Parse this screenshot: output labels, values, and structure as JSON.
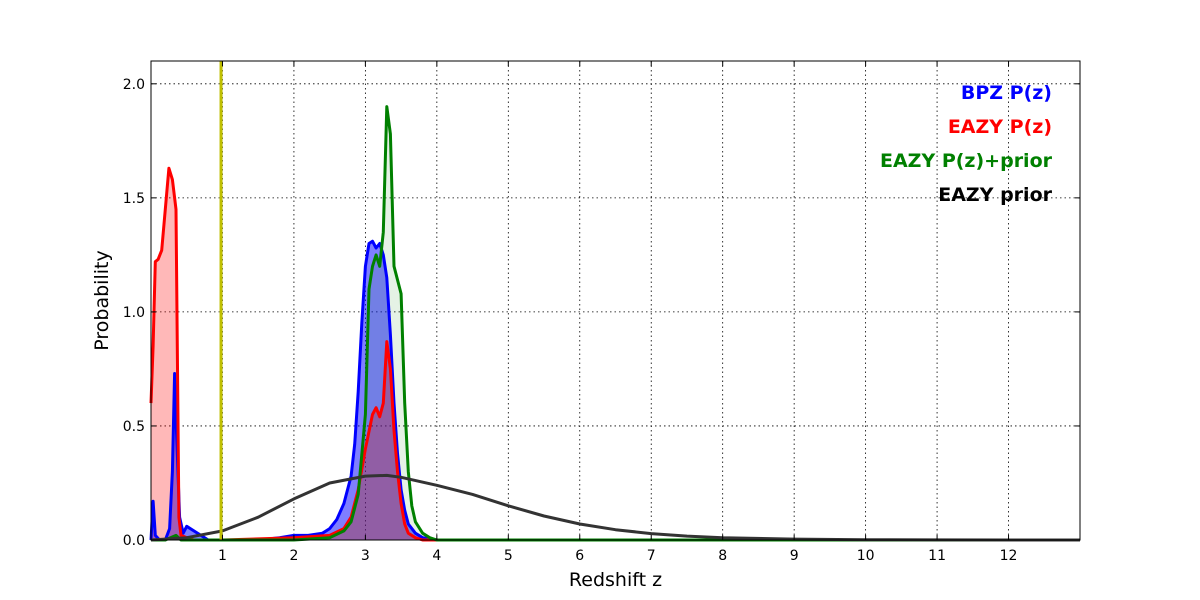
{
  "chart_data": {
    "type": "line",
    "xlabel": "Redshift z",
    "ylabel": "Probability",
    "xlim": [
      0,
      13
    ],
    "ylim": [
      0,
      2.1
    ],
    "xticks": [
      1,
      2,
      3,
      4,
      5,
      6,
      7,
      8,
      9,
      10,
      11,
      12
    ],
    "yticks": [
      0.0,
      0.5,
      1.0,
      1.5,
      2.0
    ],
    "ytick_labels": [
      "0.0",
      "0.5",
      "1.0",
      "1.5",
      "2.0"
    ],
    "grid": true,
    "legend_position": "top-right",
    "vline": {
      "x": 0.98,
      "color": "#bfbf00"
    },
    "series": [
      {
        "name": "BPZ P(z)",
        "color": "#0000ff",
        "fill": "#0000ff",
        "fill_opacity": 0.5,
        "points": [
          [
            0.0,
            0.0
          ],
          [
            0.03,
            0.17
          ],
          [
            0.06,
            0.02
          ],
          [
            0.12,
            0.0
          ],
          [
            0.2,
            0.0
          ],
          [
            0.26,
            0.05
          ],
          [
            0.3,
            0.3
          ],
          [
            0.33,
            0.73
          ],
          [
            0.36,
            0.45
          ],
          [
            0.4,
            0.1
          ],
          [
            0.45,
            0.03
          ],
          [
            0.5,
            0.06
          ],
          [
            0.6,
            0.04
          ],
          [
            0.7,
            0.02
          ],
          [
            0.8,
            0.0
          ],
          [
            1.0,
            0.0
          ],
          [
            1.5,
            0.0
          ],
          [
            1.8,
            0.01
          ],
          [
            2.0,
            0.02
          ],
          [
            2.2,
            0.02
          ],
          [
            2.4,
            0.03
          ],
          [
            2.5,
            0.05
          ],
          [
            2.6,
            0.09
          ],
          [
            2.7,
            0.16
          ],
          [
            2.8,
            0.28
          ],
          [
            2.85,
            0.42
          ],
          [
            2.9,
            0.65
          ],
          [
            2.95,
            0.95
          ],
          [
            3.0,
            1.2
          ],
          [
            3.05,
            1.3
          ],
          [
            3.1,
            1.31
          ],
          [
            3.15,
            1.28
          ],
          [
            3.2,
            1.3
          ],
          [
            3.25,
            1.25
          ],
          [
            3.3,
            1.15
          ],
          [
            3.35,
            0.9
          ],
          [
            3.4,
            0.6
          ],
          [
            3.45,
            0.38
          ],
          [
            3.5,
            0.22
          ],
          [
            3.55,
            0.13
          ],
          [
            3.6,
            0.07
          ],
          [
            3.7,
            0.03
          ],
          [
            3.8,
            0.01
          ],
          [
            4.0,
            0.0
          ],
          [
            13.0,
            0.0
          ]
        ]
      },
      {
        "name": "EAZY P(z)",
        "color": "#ff0000",
        "fill": "#ff0000",
        "fill_opacity": 0.28,
        "points": [
          [
            0.0,
            0.6
          ],
          [
            0.03,
            0.85
          ],
          [
            0.06,
            1.22
          ],
          [
            0.1,
            1.23
          ],
          [
            0.15,
            1.27
          ],
          [
            0.2,
            1.45
          ],
          [
            0.25,
            1.63
          ],
          [
            0.3,
            1.58
          ],
          [
            0.35,
            1.45
          ],
          [
            0.37,
            0.8
          ],
          [
            0.39,
            0.1
          ],
          [
            0.42,
            0.02
          ],
          [
            0.5,
            0.01
          ],
          [
            0.6,
            0.0
          ],
          [
            1.0,
            0.0
          ],
          [
            2.0,
            0.01
          ],
          [
            2.5,
            0.02
          ],
          [
            2.7,
            0.05
          ],
          [
            2.8,
            0.1
          ],
          [
            2.9,
            0.22
          ],
          [
            3.0,
            0.4
          ],
          [
            3.1,
            0.55
          ],
          [
            3.15,
            0.58
          ],
          [
            3.2,
            0.54
          ],
          [
            3.25,
            0.6
          ],
          [
            3.3,
            0.87
          ],
          [
            3.35,
            0.75
          ],
          [
            3.4,
            0.48
          ],
          [
            3.45,
            0.3
          ],
          [
            3.5,
            0.16
          ],
          [
            3.55,
            0.07
          ],
          [
            3.6,
            0.03
          ],
          [
            3.7,
            0.01
          ],
          [
            3.8,
            0.0
          ],
          [
            13.0,
            0.0
          ]
        ]
      },
      {
        "name": "EAZY P(z)+prior",
        "color": "#008000",
        "fill": "#008000",
        "fill_opacity": 0.1,
        "points": [
          [
            0.0,
            0.0
          ],
          [
            0.2,
            0.0
          ],
          [
            0.35,
            0.02
          ],
          [
            0.42,
            0.0
          ],
          [
            1.0,
            0.0
          ],
          [
            2.0,
            0.0
          ],
          [
            2.5,
            0.01
          ],
          [
            2.7,
            0.04
          ],
          [
            2.8,
            0.08
          ],
          [
            2.9,
            0.2
          ],
          [
            3.0,
            0.55
          ],
          [
            3.05,
            1.1
          ],
          [
            3.1,
            1.2
          ],
          [
            3.15,
            1.25
          ],
          [
            3.2,
            1.2
          ],
          [
            3.25,
            1.35
          ],
          [
            3.3,
            1.9
          ],
          [
            3.35,
            1.78
          ],
          [
            3.4,
            1.2
          ],
          [
            3.5,
            1.08
          ],
          [
            3.55,
            0.6
          ],
          [
            3.6,
            0.3
          ],
          [
            3.65,
            0.15
          ],
          [
            3.7,
            0.08
          ],
          [
            3.8,
            0.03
          ],
          [
            3.9,
            0.01
          ],
          [
            4.0,
            0.0
          ],
          [
            13.0,
            0.0
          ]
        ]
      },
      {
        "name": "EAZY prior",
        "color": "#333333",
        "fill": null,
        "fill_opacity": 0,
        "points": [
          [
            0.0,
            0.0
          ],
          [
            0.5,
            0.01
          ],
          [
            1.0,
            0.04
          ],
          [
            1.5,
            0.1
          ],
          [
            2.0,
            0.18
          ],
          [
            2.5,
            0.25
          ],
          [
            3.0,
            0.28
          ],
          [
            3.3,
            0.283
          ],
          [
            3.5,
            0.275
          ],
          [
            4.0,
            0.24
          ],
          [
            4.5,
            0.2
          ],
          [
            5.0,
            0.15
          ],
          [
            5.5,
            0.105
          ],
          [
            6.0,
            0.07
          ],
          [
            6.5,
            0.045
          ],
          [
            7.0,
            0.028
          ],
          [
            7.5,
            0.017
          ],
          [
            8.0,
            0.01
          ],
          [
            9.0,
            0.004
          ],
          [
            10.0,
            0.0015
          ],
          [
            11.0,
            0.0005
          ],
          [
            13.0,
            0.0
          ]
        ]
      }
    ]
  }
}
